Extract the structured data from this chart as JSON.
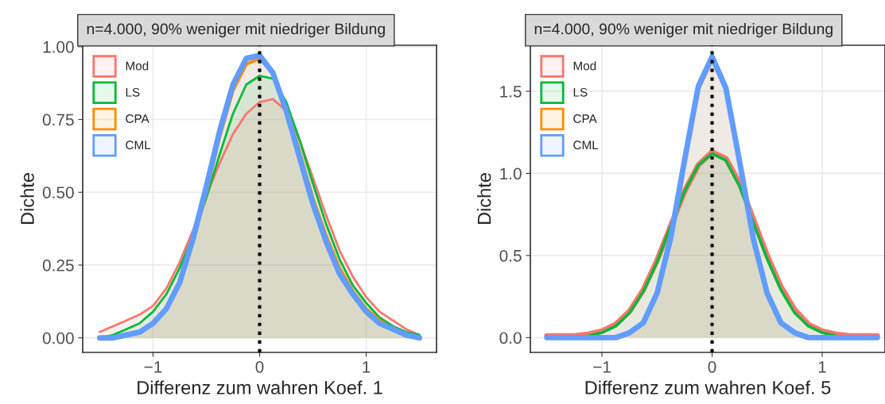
{
  "chart_data": [
    {
      "type": "area",
      "title": "n=4.000, 90% weniger mit niedriger Bildung",
      "xlabel": "Differenz zum wahren Koef. 1",
      "ylabel": "Dichte",
      "x": [
        -1.5,
        -1.375,
        -1.25,
        -1.125,
        -1,
        -0.875,
        -0.75,
        -0.625,
        -0.5,
        -0.375,
        -0.25,
        -0.125,
        0,
        0.125,
        0.25,
        0.375,
        0.5,
        0.625,
        0.75,
        0.875,
        1,
        1.125,
        1.25,
        1.375,
        1.5
      ],
      "series": [
        {
          "name": "Mod",
          "color": "#f8766d",
          "values": [
            0.02,
            0.04,
            0.06,
            0.08,
            0.11,
            0.17,
            0.26,
            0.37,
            0.49,
            0.6,
            0.7,
            0.77,
            0.81,
            0.82,
            0.78,
            0.68,
            0.55,
            0.42,
            0.3,
            0.21,
            0.14,
            0.09,
            0.06,
            0.03,
            0.01
          ]
        },
        {
          "name": "LS",
          "color": "#00ba38",
          "values": [
            0.0,
            0.01,
            0.03,
            0.05,
            0.09,
            0.15,
            0.24,
            0.35,
            0.48,
            0.63,
            0.77,
            0.87,
            0.9,
            0.89,
            0.81,
            0.68,
            0.53,
            0.39,
            0.27,
            0.18,
            0.12,
            0.07,
            0.04,
            0.02,
            0.01
          ]
        },
        {
          "name": "CPA",
          "color": "#ff8c00",
          "values": [
            0.0,
            0.0,
            0.01,
            0.02,
            0.05,
            0.1,
            0.19,
            0.33,
            0.5,
            0.69,
            0.85,
            0.94,
            0.96,
            0.91,
            0.79,
            0.64,
            0.48,
            0.35,
            0.24,
            0.16,
            0.1,
            0.06,
            0.03,
            0.01,
            0.0
          ]
        },
        {
          "name": "CML",
          "color": "#619cff",
          "values": [
            0.0,
            0.0,
            0.01,
            0.02,
            0.05,
            0.1,
            0.19,
            0.34,
            0.52,
            0.71,
            0.87,
            0.96,
            0.97,
            0.91,
            0.78,
            0.62,
            0.46,
            0.33,
            0.22,
            0.15,
            0.09,
            0.05,
            0.03,
            0.01,
            0.0
          ]
        }
      ],
      "xlim": [
        -1.66,
        1.66
      ],
      "ylim": [
        -0.05,
        1.005
      ],
      "xticks": [
        {
          "value": -1,
          "label": "−1"
        },
        0,
        1
      ],
      "yticks": [
        {
          "value": 0,
          "label": "0.00"
        },
        {
          "value": 0.25,
          "label": "0.25"
        },
        {
          "value": 0.5,
          "label": "0.50"
        },
        {
          "value": 0.75,
          "label": "0.75"
        },
        {
          "value": 1,
          "label": "1.00"
        }
      ],
      "ref_lines": [
        {
          "axis": "x",
          "value": 0,
          "color": "#000000",
          "line_style": "dotted"
        }
      ],
      "grid": true,
      "legend": "top left"
    },
    {
      "type": "area",
      "title": "n=4.000, 90% weniger mit niedriger Bildung",
      "xlabel": "Differenz zum wahren Koef. 5",
      "ylabel": "Dichte",
      "x": [
        -1.5,
        -1.375,
        -1.25,
        -1.125,
        -1,
        -0.875,
        -0.75,
        -0.625,
        -0.5,
        -0.375,
        -0.25,
        -0.125,
        0,
        0.125,
        0.25,
        0.375,
        0.5,
        0.625,
        0.75,
        0.875,
        1,
        1.125,
        1.25,
        1.375,
        1.5
      ],
      "series": [
        {
          "name": "Mod",
          "color": "#f8766d",
          "values": [
            0.01,
            0.01,
            0.01,
            0.02,
            0.04,
            0.08,
            0.16,
            0.29,
            0.47,
            0.68,
            0.89,
            1.05,
            1.13,
            1.09,
            0.94,
            0.72,
            0.5,
            0.31,
            0.17,
            0.08,
            0.04,
            0.02,
            0.01,
            0.01,
            0.01
          ]
        },
        {
          "name": "LS",
          "color": "#00ba38",
          "values": [
            0.0,
            0.0,
            0.0,
            0.01,
            0.03,
            0.07,
            0.15,
            0.28,
            0.46,
            0.68,
            0.89,
            1.05,
            1.12,
            1.08,
            0.92,
            0.7,
            0.48,
            0.29,
            0.15,
            0.07,
            0.03,
            0.01,
            0.0,
            0.0,
            0.0
          ]
        },
        {
          "name": "CPA",
          "color": "#ff8c00",
          "values": [
            0,
            0,
            0,
            0,
            0,
            0.0,
            0.03,
            0.09,
            0.27,
            0.6,
            1.07,
            1.51,
            1.69,
            1.51,
            1.07,
            0.6,
            0.27,
            0.09,
            0.03,
            0.0,
            0,
            0,
            0,
            0,
            0
          ]
        },
        {
          "name": "CML",
          "color": "#619cff",
          "values": [
            0,
            0,
            0,
            0,
            0,
            0.0,
            0.03,
            0.09,
            0.27,
            0.61,
            1.08,
            1.53,
            1.71,
            1.52,
            1.07,
            0.6,
            0.27,
            0.09,
            0.03,
            0.0,
            0,
            0,
            0,
            0,
            0
          ]
        }
      ],
      "xlim": [
        -1.65,
        1.57
      ],
      "ylim": [
        -0.09,
        1.78
      ],
      "xticks": [
        {
          "value": -1,
          "label": "−1"
        },
        0,
        1
      ],
      "yticks": [
        {
          "value": 0,
          "label": "0.0"
        },
        {
          "value": 0.5,
          "label": "0.5"
        },
        {
          "value": 1,
          "label": "1.0"
        },
        {
          "value": 1.5,
          "label": "1.5"
        }
      ],
      "ref_lines": [
        {
          "axis": "x",
          "value": 0,
          "color": "#000000",
          "line_style": "dotted"
        }
      ],
      "grid": true,
      "legend": "top left"
    }
  ]
}
